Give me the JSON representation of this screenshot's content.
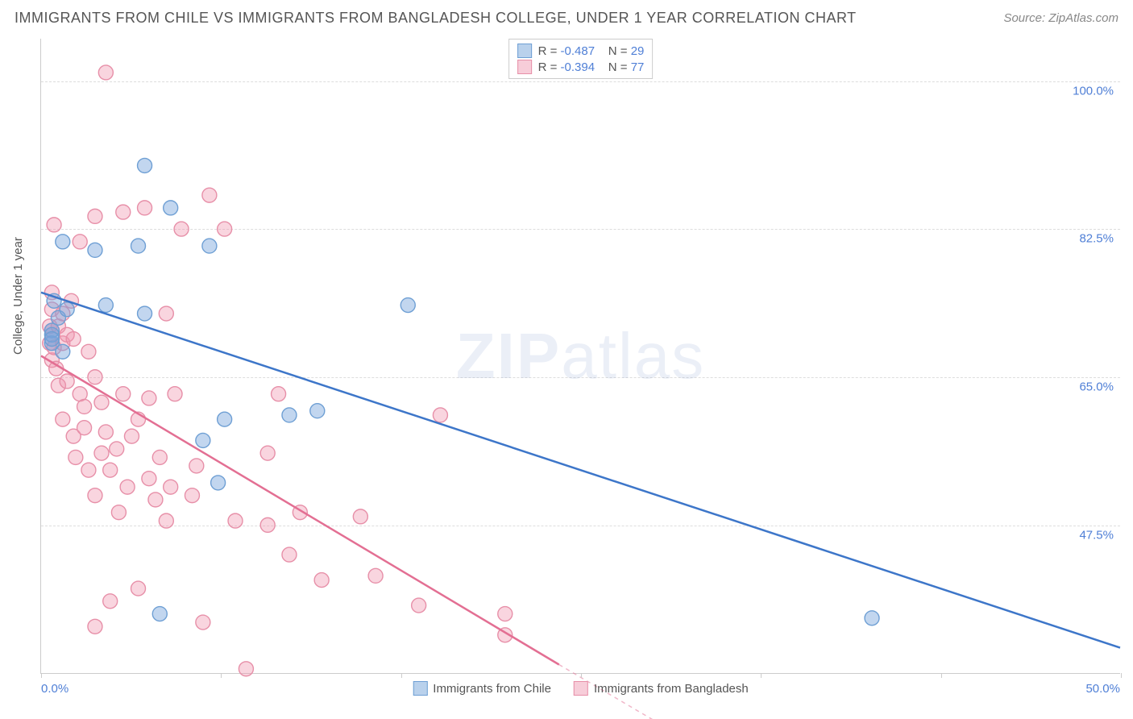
{
  "header": {
    "title": "IMMIGRANTS FROM CHILE VS IMMIGRANTS FROM BANGLADESH COLLEGE, UNDER 1 YEAR CORRELATION CHART",
    "source": "Source: ZipAtlas.com"
  },
  "chart": {
    "type": "scatter",
    "watermark_zip": "ZIP",
    "watermark_atlas": "atlas",
    "background_color": "#ffffff",
    "grid_color": "#dddddd",
    "axis_color": "#cccccc",
    "value_color": "#4f7fd6",
    "text_color": "#555555",
    "xlim": [
      0.0,
      50.0
    ],
    "ylim": [
      30.0,
      105.0
    ],
    "y_axis_title": "College, Under 1 year",
    "y_gridlines": [
      47.5,
      65.0,
      82.5,
      100.0
    ],
    "y_tick_labels": [
      "47.5%",
      "65.0%",
      "82.5%",
      "100.0%"
    ],
    "x_tick_positions": [
      0,
      8.33,
      16.67,
      25.0,
      33.33,
      41.67,
      50.0
    ],
    "x_label_min": "0.0%",
    "x_label_max": "50.0%",
    "series": [
      {
        "name": "Immigrants from Chile",
        "color_fill": "rgba(120,165,220,0.45)",
        "color_stroke": "#6e9fd4",
        "color_swatch_fill": "#b9d1ec",
        "color_swatch_border": "#6e9fd4",
        "line_color": "#3d76c9",
        "r_label": "R = ",
        "r_value": "-0.487",
        "n_label": "N = ",
        "n_value": "29",
        "marker_radius": 9,
        "trend": {
          "x1": 0.0,
          "y1": 75.0,
          "x2": 50.0,
          "y2": 33.0,
          "dashed_from_x": 50.0
        },
        "points": [
          [
            0.5,
            70.5
          ],
          [
            0.5,
            69.0
          ],
          [
            0.8,
            72.0
          ],
          [
            0.6,
            74.0
          ],
          [
            0.5,
            70.0
          ],
          [
            1.0,
            81.0
          ],
          [
            0.5,
            69.5
          ],
          [
            1.0,
            68.0
          ],
          [
            1.2,
            73.0
          ],
          [
            2.5,
            80.0
          ],
          [
            3.0,
            73.5
          ],
          [
            4.5,
            80.5
          ],
          [
            4.8,
            90.0
          ],
          [
            4.8,
            72.5
          ],
          [
            5.5,
            37.0
          ],
          [
            6.0,
            85.0
          ],
          [
            7.5,
            57.5
          ],
          [
            7.8,
            80.5
          ],
          [
            8.2,
            52.5
          ],
          [
            8.5,
            60.0
          ],
          [
            11.5,
            60.5
          ],
          [
            12.8,
            61.0
          ],
          [
            17.0,
            73.5
          ],
          [
            38.5,
            36.5
          ]
        ]
      },
      {
        "name": "Immigrants from Bangladesh",
        "color_fill": "rgba(240,150,175,0.40)",
        "color_stroke": "#e78fa8",
        "color_swatch_fill": "#f7cdd9",
        "color_swatch_border": "#e78fa8",
        "line_color": "#e36f93",
        "r_label": "R = ",
        "r_value": "-0.394",
        "n_label": "N = ",
        "n_value": "77",
        "marker_radius": 9,
        "trend": {
          "x1": 0.0,
          "y1": 67.5,
          "x2": 24.0,
          "y2": 31.0,
          "dashed_from_x": 24.0,
          "dash_x2": 30.0,
          "dash_y2": 22.0
        },
        "points": [
          [
            0.4,
            71.0
          ],
          [
            0.4,
            69.0
          ],
          [
            0.5,
            67.0
          ],
          [
            0.5,
            70.5
          ],
          [
            0.5,
            73.0
          ],
          [
            0.5,
            75.0
          ],
          [
            0.6,
            68.5
          ],
          [
            0.6,
            83.0
          ],
          [
            0.7,
            66.0
          ],
          [
            0.8,
            64.0
          ],
          [
            0.8,
            71.0
          ],
          [
            1.0,
            69.0
          ],
          [
            1.0,
            72.5
          ],
          [
            1.0,
            60.0
          ],
          [
            1.2,
            64.5
          ],
          [
            1.2,
            70.0
          ],
          [
            1.4,
            74.0
          ],
          [
            1.5,
            69.5
          ],
          [
            1.5,
            58.0
          ],
          [
            1.6,
            55.5
          ],
          [
            1.8,
            63.0
          ],
          [
            1.8,
            81.0
          ],
          [
            2.0,
            59.0
          ],
          [
            2.0,
            61.5
          ],
          [
            2.2,
            68.0
          ],
          [
            2.2,
            54.0
          ],
          [
            2.5,
            65.0
          ],
          [
            2.5,
            84.0
          ],
          [
            2.5,
            51.0
          ],
          [
            2.5,
            35.5
          ],
          [
            2.8,
            62.0
          ],
          [
            2.8,
            56.0
          ],
          [
            3.0,
            58.5
          ],
          [
            3.0,
            101.0
          ],
          [
            3.2,
            54.0
          ],
          [
            3.2,
            38.5
          ],
          [
            3.5,
            56.5
          ],
          [
            3.6,
            49.0
          ],
          [
            3.8,
            63.0
          ],
          [
            3.8,
            84.5
          ],
          [
            4.0,
            52.0
          ],
          [
            4.2,
            58.0
          ],
          [
            4.5,
            60.0
          ],
          [
            4.5,
            40.0
          ],
          [
            4.8,
            85.0
          ],
          [
            5.0,
            53.0
          ],
          [
            5.0,
            62.5
          ],
          [
            5.3,
            50.5
          ],
          [
            5.5,
            55.5
          ],
          [
            5.8,
            48.0
          ],
          [
            5.8,
            72.5
          ],
          [
            6.0,
            52.0
          ],
          [
            6.2,
            63.0
          ],
          [
            6.5,
            82.5
          ],
          [
            7.0,
            51.0
          ],
          [
            7.2,
            54.5
          ],
          [
            7.5,
            36.0
          ],
          [
            7.8,
            86.5
          ],
          [
            8.5,
            82.5
          ],
          [
            9.0,
            48.0
          ],
          [
            9.5,
            30.5
          ],
          [
            10.5,
            56.0
          ],
          [
            10.5,
            47.5
          ],
          [
            11.0,
            63.0
          ],
          [
            11.5,
            44.0
          ],
          [
            12.0,
            49.0
          ],
          [
            13.0,
            41.0
          ],
          [
            14.8,
            48.5
          ],
          [
            15.5,
            41.5
          ],
          [
            17.5,
            38.0
          ],
          [
            18.5,
            60.5
          ],
          [
            21.5,
            37.0
          ],
          [
            21.5,
            34.5
          ]
        ]
      }
    ],
    "legend_bottom": [
      {
        "label": "Immigrants from Chile",
        "fill": "#b9d1ec",
        "border": "#6e9fd4"
      },
      {
        "label": "Immigrants from Bangladesh",
        "fill": "#f7cdd9",
        "border": "#e78fa8"
      }
    ]
  }
}
